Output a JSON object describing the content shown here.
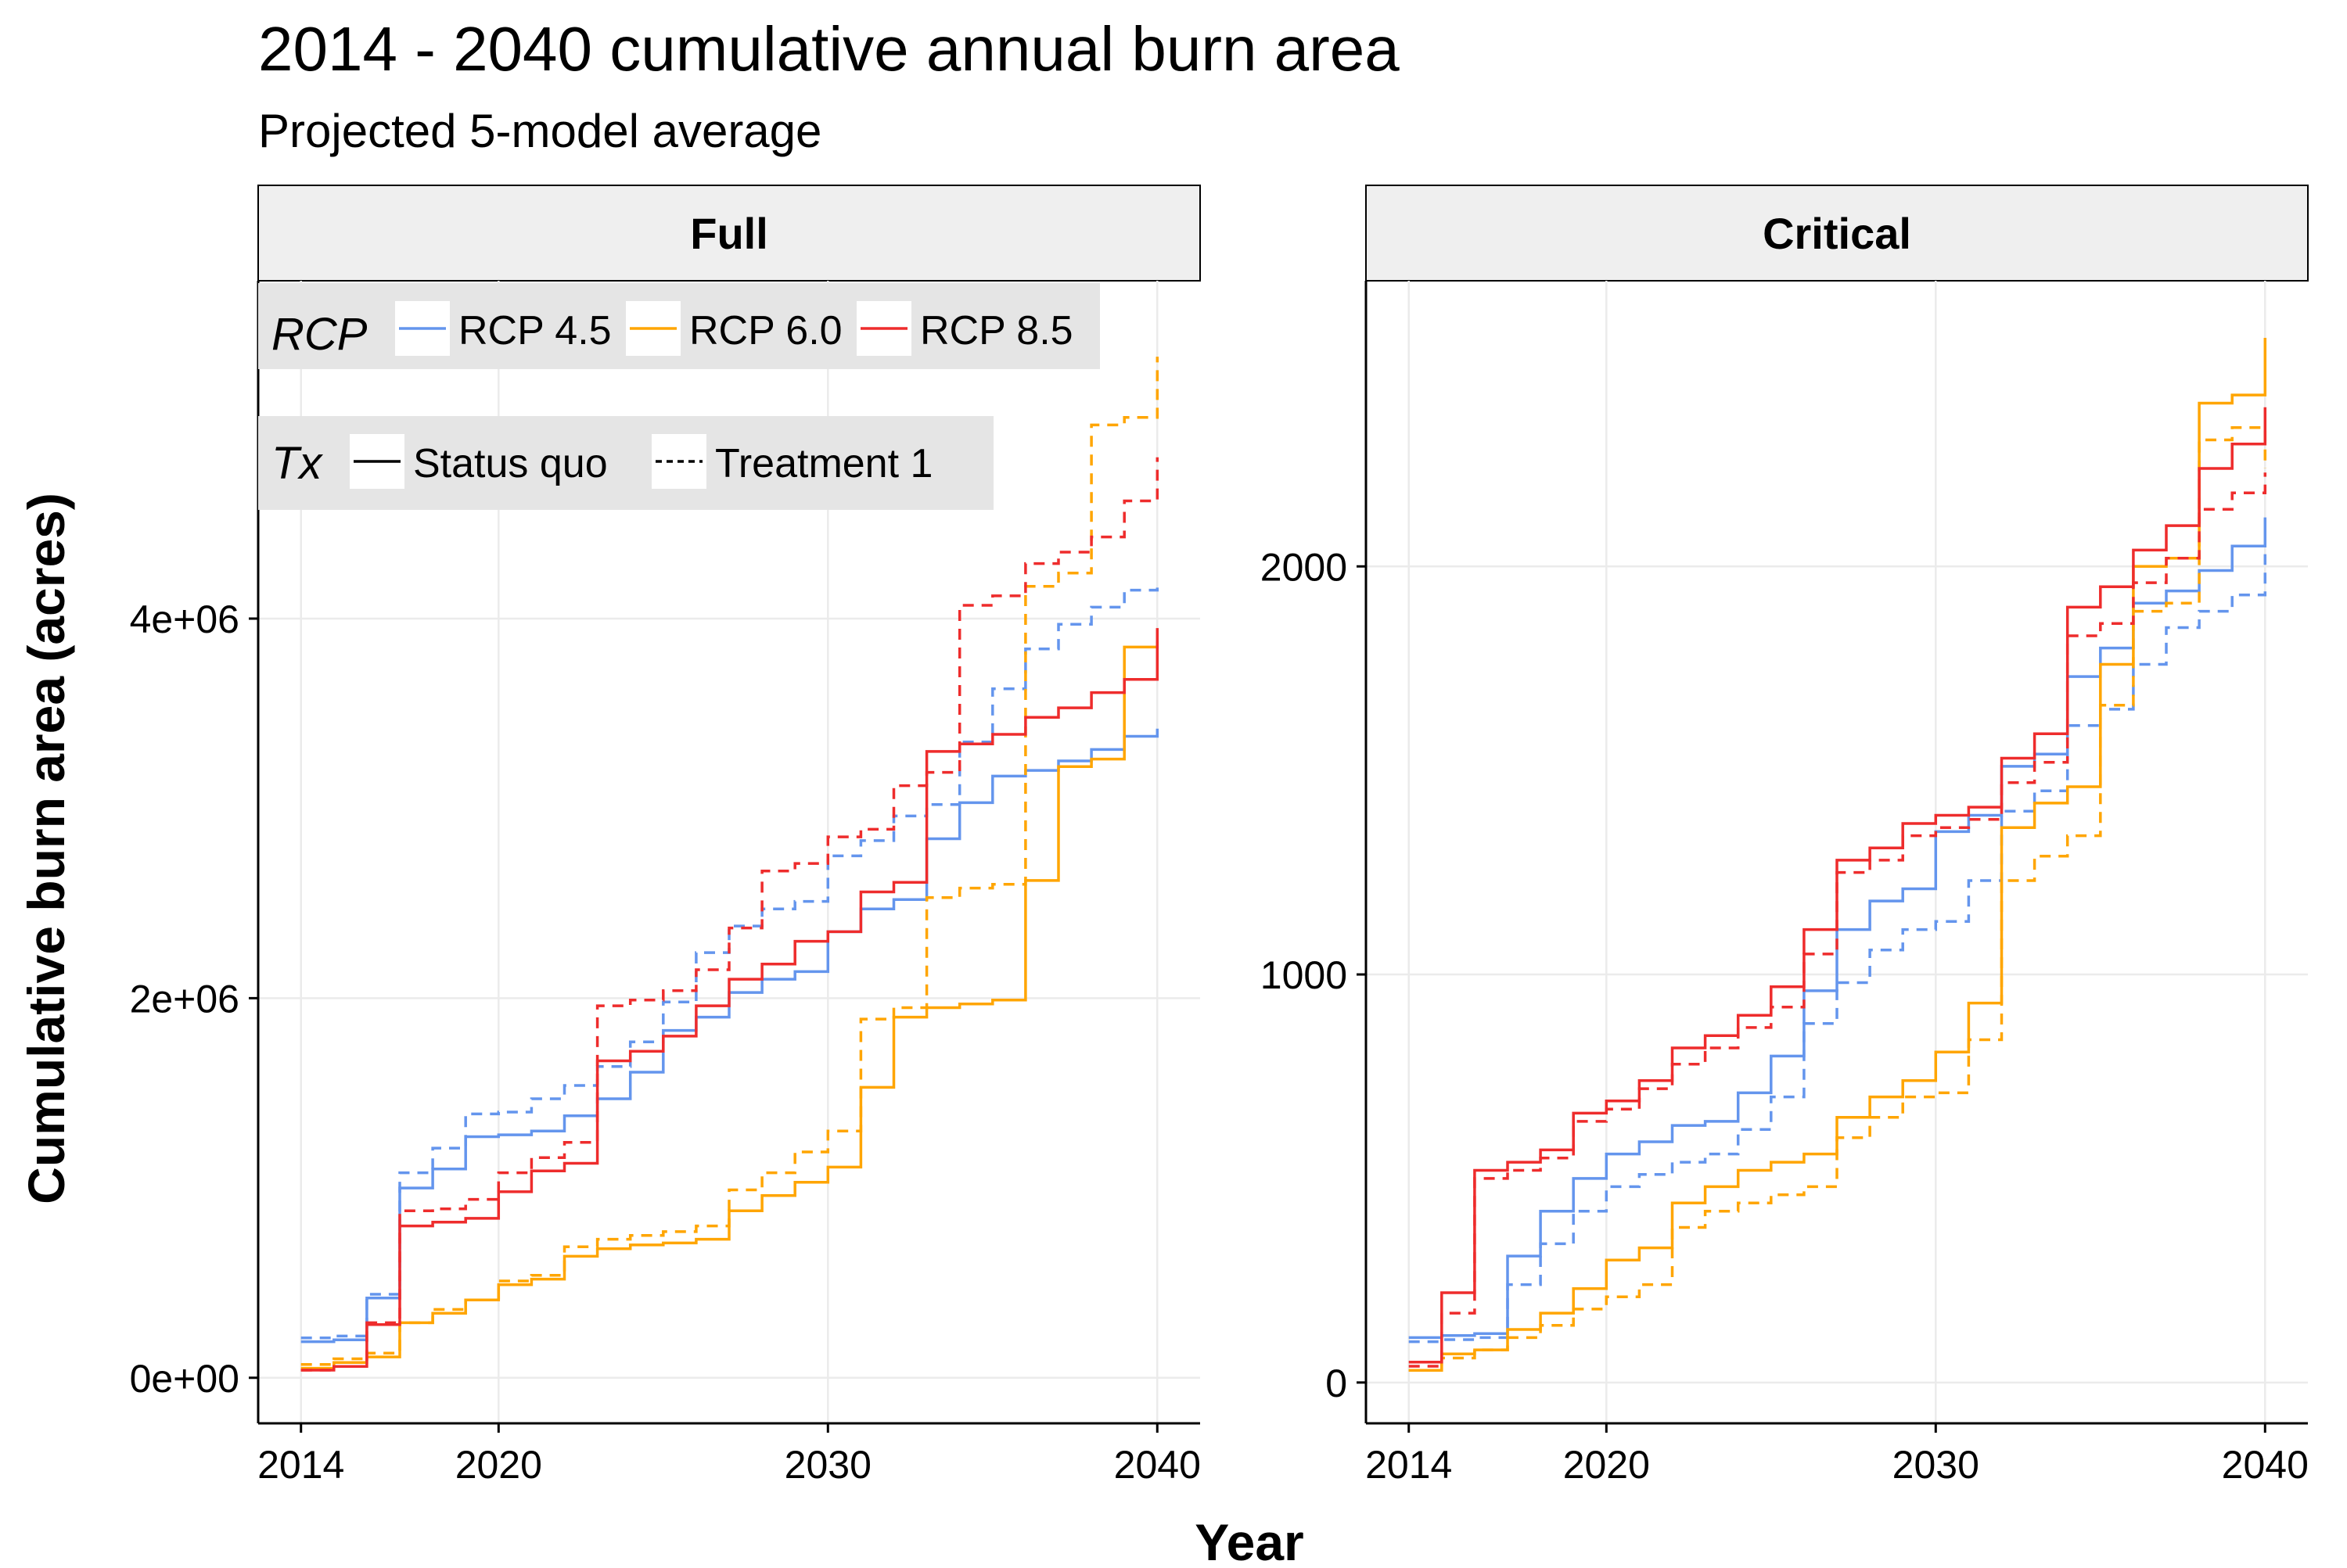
{
  "title": "2014 - 2040 cumulative annual burn area",
  "subtitle": "Projected 5-model average",
  "x_axis_label": "Year",
  "y_axis_label": "Cumulative burn area (acres)",
  "legend": {
    "rcp_title": "RCP",
    "tx_title": "Tx",
    "rcp_items": [
      {
        "label": "RCP 4.5",
        "color": "#6495ED"
      },
      {
        "label": "RCP 6.0",
        "color": "#FFA500"
      },
      {
        "label": "RCP 8.5",
        "color": "#EE2C2C"
      }
    ],
    "tx_items": [
      {
        "label": "Status quo",
        "linetype": "solid"
      },
      {
        "label": "Treatment 1",
        "linetype": "dashed"
      }
    ]
  },
  "colors": {
    "rcp45": "#6495ED",
    "rcp60": "#FFA500",
    "rcp85": "#EE2C2C",
    "strip_bg": "#EFEFEF",
    "legend_bg": "#E5E5E5",
    "grid": "#EBEBEB"
  },
  "chart_data": [
    {
      "type": "line",
      "facet": "Full",
      "x_ticks": [
        2014,
        2020,
        2030,
        2040
      ],
      "y_ticks": [
        0,
        2000000,
        4000000
      ],
      "y_tick_labels": [
        "0e+00",
        "2e+06",
        "4e+06"
      ],
      "xlim": [
        2012.7,
        2041.3
      ],
      "ylim": [
        -240000,
        5780000
      ],
      "grid": true,
      "legend_position": "top-left",
      "x": [
        2014,
        2015,
        2016,
        2017,
        2018,
        2019,
        2020,
        2021,
        2022,
        2023,
        2024,
        2025,
        2026,
        2027,
        2028,
        2029,
        2030,
        2031,
        2032,
        2033,
        2034,
        2035,
        2036,
        2037,
        2038,
        2039,
        2040
      ],
      "series": [
        {
          "name": "RCP 4.5",
          "treatment": "Status quo",
          "values": [
            190000,
            200000,
            420000,
            1000000,
            1100000,
            1270000,
            1280000,
            1300000,
            1380000,
            1470000,
            1610000,
            1830000,
            1900000,
            2030000,
            2100000,
            2140000,
            2350000,
            2470000,
            2520000,
            2840000,
            3030000,
            3170000,
            3200000,
            3250000,
            3310000,
            3380000,
            3420000
          ]
        },
        {
          "name": "RCP 4.5",
          "treatment": "Treatment 1",
          "values": [
            210000,
            220000,
            440000,
            1080000,
            1210000,
            1390000,
            1400000,
            1470000,
            1540000,
            1640000,
            1770000,
            1980000,
            2240000,
            2380000,
            2470000,
            2510000,
            2750000,
            2830000,
            2960000,
            3020000,
            3350000,
            3630000,
            3840000,
            3970000,
            4060000,
            4150000,
            4170000
          ]
        },
        {
          "name": "RCP 6.0",
          "treatment": "Status quo",
          "values": [
            50000,
            80000,
            110000,
            290000,
            340000,
            410000,
            490000,
            520000,
            640000,
            680000,
            700000,
            710000,
            730000,
            880000,
            960000,
            1030000,
            1110000,
            1530000,
            1900000,
            1950000,
            1970000,
            1990000,
            2620000,
            3220000,
            3260000,
            3850000,
            3880000
          ]
        },
        {
          "name": "RCP 6.0",
          "treatment": "Treatment 1",
          "values": [
            70000,
            100000,
            130000,
            290000,
            360000,
            410000,
            510000,
            540000,
            690000,
            730000,
            750000,
            770000,
            800000,
            990000,
            1080000,
            1190000,
            1300000,
            1890000,
            1950000,
            2530000,
            2580000,
            2600000,
            4170000,
            4240000,
            5020000,
            5060000,
            5380000
          ]
        },
        {
          "name": "RCP 8.5",
          "treatment": "Status quo",
          "values": [
            40000,
            60000,
            280000,
            800000,
            820000,
            840000,
            980000,
            1090000,
            1130000,
            1670000,
            1720000,
            1800000,
            1960000,
            2100000,
            2180000,
            2300000,
            2350000,
            2560000,
            2610000,
            3300000,
            3340000,
            3390000,
            3480000,
            3530000,
            3610000,
            3680000,
            3950000
          ]
        },
        {
          "name": "RCP 8.5",
          "treatment": "Treatment 1",
          "values": [
            40000,
            60000,
            290000,
            880000,
            890000,
            940000,
            1080000,
            1160000,
            1240000,
            1960000,
            1990000,
            2040000,
            2150000,
            2370000,
            2670000,
            2710000,
            2850000,
            2890000,
            3120000,
            3190000,
            4070000,
            4120000,
            4290000,
            4350000,
            4430000,
            4620000,
            4850000
          ]
        }
      ]
    },
    {
      "type": "line",
      "facet": "Critical",
      "x_ticks": [
        2014,
        2020,
        2030,
        2040
      ],
      "y_ticks": [
        0,
        1000,
        2000
      ],
      "y_tick_labels": [
        "0",
        "1000",
        "2000"
      ],
      "xlim": [
        2012.7,
        2041.3
      ],
      "ylim": [
        -100,
        2700
      ],
      "grid": true,
      "x": [
        2014,
        2015,
        2016,
        2017,
        2018,
        2019,
        2020,
        2021,
        2022,
        2023,
        2024,
        2025,
        2026,
        2027,
        2028,
        2029,
        2030,
        2031,
        2032,
        2033,
        2034,
        2035,
        2036,
        2037,
        2038,
        2039,
        2040
      ],
      "series": [
        {
          "name": "RCP 4.5",
          "treatment": "Status quo",
          "values": [
            110,
            115,
            120,
            310,
            420,
            500,
            560,
            590,
            630,
            640,
            710,
            800,
            960,
            1110,
            1180,
            1210,
            1350,
            1390,
            1510,
            1540,
            1730,
            1800,
            1910,
            1940,
            1990,
            2050,
            2120
          ]
        },
        {
          "name": "RCP 4.5",
          "treatment": "Treatment 1",
          "values": [
            100,
            105,
            110,
            240,
            340,
            420,
            480,
            510,
            540,
            560,
            620,
            700,
            880,
            980,
            1060,
            1110,
            1130,
            1230,
            1400,
            1450,
            1610,
            1650,
            1760,
            1850,
            1890,
            1930,
            2030
          ]
        },
        {
          "name": "RCP 6.0",
          "treatment": "Status quo",
          "values": [
            30,
            70,
            80,
            130,
            170,
            230,
            300,
            330,
            440,
            480,
            520,
            540,
            560,
            650,
            700,
            740,
            810,
            930,
            1360,
            1420,
            1460,
            1760,
            2000,
            2020,
            2400,
            2420,
            2560
          ]
        },
        {
          "name": "RCP 6.0",
          "treatment": "Treatment 1",
          "values": [
            30,
            60,
            80,
            110,
            140,
            180,
            210,
            240,
            380,
            420,
            440,
            460,
            480,
            600,
            650,
            700,
            710,
            840,
            1230,
            1290,
            1340,
            1660,
            1890,
            1910,
            2310,
            2340,
            2240
          ]
        },
        {
          "name": "RCP 8.5",
          "treatment": "Status quo",
          "values": [
            50,
            220,
            520,
            540,
            570,
            660,
            690,
            740,
            820,
            850,
            900,
            970,
            1110,
            1280,
            1310,
            1370,
            1390,
            1410,
            1530,
            1590,
            1900,
            1950,
            2040,
            2100,
            2240,
            2300,
            2390
          ]
        },
        {
          "name": "RCP 8.5",
          "treatment": "Treatment 1",
          "values": [
            40,
            170,
            500,
            520,
            550,
            640,
            670,
            720,
            780,
            820,
            870,
            920,
            1050,
            1250,
            1280,
            1340,
            1360,
            1380,
            1470,
            1520,
            1830,
            1860,
            1960,
            2020,
            2140,
            2180,
            2230
          ]
        }
      ]
    }
  ]
}
